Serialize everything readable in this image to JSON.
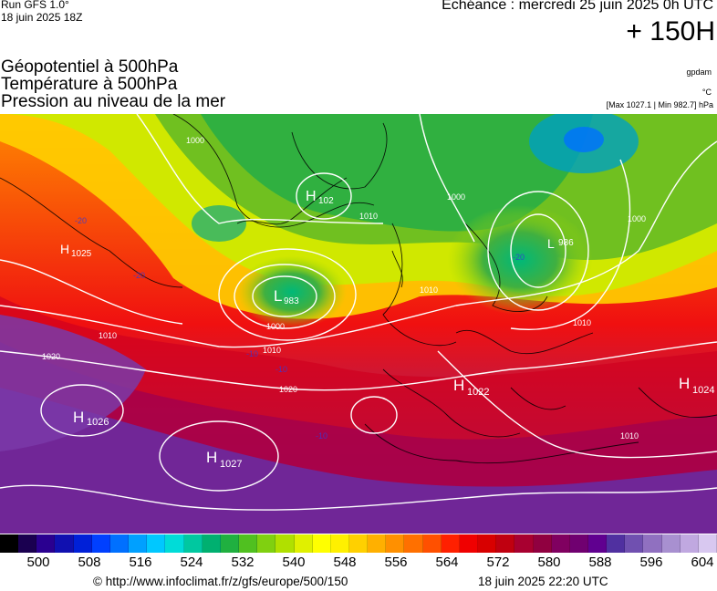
{
  "header": {
    "run": "Run GFS 1.0°",
    "run_date": "18 juin 2025 18Z",
    "echeance": "Echéance : mercredi 25 juin 2025 0h UTC",
    "lead_time": "+ 150H"
  },
  "titles": [
    "Géopotentiel à 500hPa",
    "Température à 500hPa",
    "Pression au niveau de la mer"
  ],
  "units": {
    "geopotential": "gpdam",
    "temperature": "°C",
    "max_min": "[Max 1027.1 | Min 982.7] hPa"
  },
  "map": {
    "pressure_centers": [
      {
        "type": "H",
        "value": "1025"
      },
      {
        "type": "H",
        "value": "102"
      },
      {
        "type": "L",
        "value": "983"
      },
      {
        "type": "L",
        "value": "986"
      },
      {
        "type": "H",
        "value": "1026"
      },
      {
        "type": "H",
        "value": "1027"
      },
      {
        "type": "H",
        "value": "1022"
      },
      {
        "type": "H",
        "value": "1024"
      }
    ],
    "isobar_labels": [
      "1000",
      "1000",
      "1000",
      "1010",
      "1010",
      "1010",
      "1010",
      "1010",
      "1020",
      "1020",
      "1000",
      "1010"
    ],
    "temperature_labels": [
      "-20",
      "-20",
      "-10",
      "-10",
      "-10",
      "-20"
    ]
  },
  "legend": {
    "colors": [
      "#000000",
      "#1a0050",
      "#2a0090",
      "#1010b0",
      "#0020d8",
      "#0040ff",
      "#0070ff",
      "#00a0ff",
      "#00c8ff",
      "#00dcd8",
      "#00c8a0",
      "#00b070",
      "#20b040",
      "#50c020",
      "#80d010",
      "#b0e000",
      "#e0f000",
      "#ffff00",
      "#fff000",
      "#ffd000",
      "#ffb000",
      "#ff9000",
      "#ff7000",
      "#ff5000",
      "#ff2000",
      "#f00000",
      "#d80000",
      "#c00010",
      "#a80030",
      "#900040",
      "#800060",
      "#700070",
      "#600090",
      "#5030a0",
      "#7050b0",
      "#9070c0",
      "#a890d0",
      "#c0a8e0",
      "#d8c8f0"
    ],
    "ticks": [
      "500",
      "508",
      "516",
      "524",
      "532",
      "540",
      "548",
      "556",
      "564",
      "572",
      "580",
      "588",
      "596",
      "604"
    ]
  },
  "footer": {
    "credit": "© http://www.infoclimat.fr/z/gfs/europe/500/150",
    "timestamp": "18 juin 2025 22:20 UTC"
  }
}
